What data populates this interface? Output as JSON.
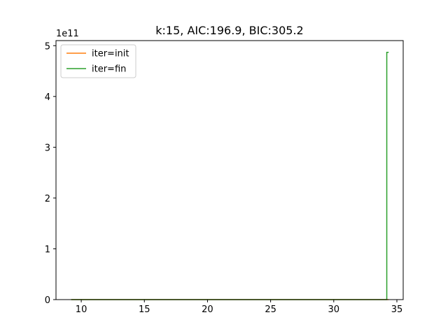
{
  "chart_data": {
    "type": "line",
    "title": "k:15, AIC:196.9, BIC:305.2",
    "xlabel": "",
    "ylabel": "",
    "xlim": [
      8.0,
      35.5
    ],
    "ylim": [
      0,
      5.1
    ],
    "y_offset_label": "1e11",
    "x_ticks": [
      10,
      15,
      20,
      25,
      30,
      35
    ],
    "y_ticks": [
      0,
      1,
      2,
      3,
      4,
      5
    ],
    "grid": false,
    "legend_position": "top-left",
    "series": [
      {
        "name": "iter=init",
        "color": "#ff7f0e",
        "x": [
          9.2,
          34.2,
          34.2,
          34.35
        ],
        "y": [
          0,
          0,
          0,
          0
        ]
      },
      {
        "name": "iter=fin",
        "color": "#2ca02c",
        "x": [
          9.2,
          34.2,
          34.2,
          34.35
        ],
        "y": [
          0,
          0,
          4.87,
          4.87
        ]
      }
    ]
  }
}
